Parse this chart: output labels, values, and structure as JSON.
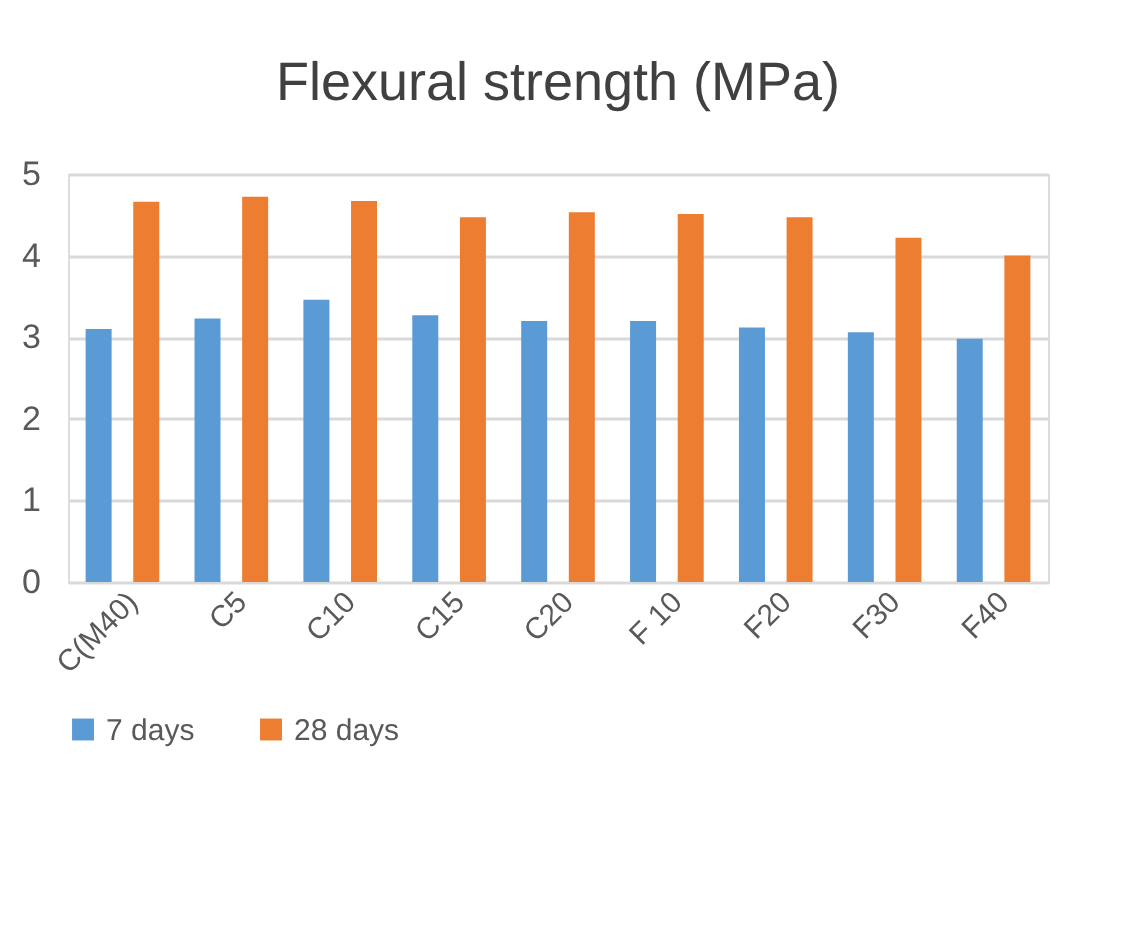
{
  "chart_data": {
    "type": "bar",
    "title": "Flexural strength (MPa)",
    "categories": [
      "C(M40)",
      "C5",
      "C10",
      "C15",
      "C20",
      "F 10",
      "F20",
      "F30",
      "F40"
    ],
    "series": [
      {
        "name": "7 days",
        "color": "#5b9bd5",
        "values": [
          3.1,
          3.23,
          3.46,
          3.27,
          3.2,
          3.2,
          3.12,
          3.06,
          2.98
        ]
      },
      {
        "name": "28 days",
        "color": "#ed7d31",
        "values": [
          4.66,
          4.72,
          4.67,
          4.47,
          4.53,
          4.51,
          4.47,
          4.22,
          4.0
        ]
      }
    ],
    "ylim": [
      0,
      5
    ],
    "yticks": [
      0,
      1,
      2,
      3,
      4,
      5
    ],
    "grid": "y",
    "legend": "bottom"
  }
}
